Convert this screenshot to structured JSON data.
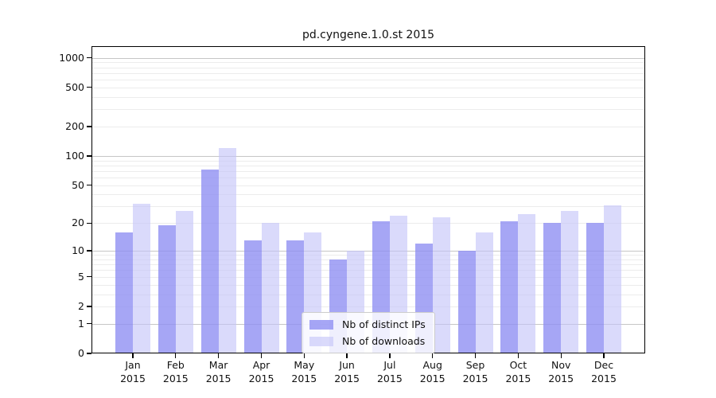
{
  "title": "pd.cyngene.1.0.st 2015",
  "chart_data": {
    "type": "bar",
    "title": "pd.cyngene.1.0.st 2015",
    "categories": [
      "Jan",
      "Feb",
      "Mar",
      "Apr",
      "May",
      "Jun",
      "Jul",
      "Aug",
      "Sep",
      "Oct",
      "Nov",
      "Dec"
    ],
    "x_year": "2015",
    "series": [
      {
        "name": "Nb of distinct IPs",
        "color": "rgba(141,141,242,0.78)",
        "values": [
          16,
          19,
          73,
          13,
          13,
          8,
          21,
          12,
          10,
          21,
          20,
          20
        ]
      },
      {
        "name": "Nb of downloads",
        "color": "rgba(196,196,248,0.62)",
        "values": [
          32,
          27,
          120,
          20,
          16,
          10,
          24,
          23,
          16,
          25,
          27,
          31
        ]
      }
    ],
    "xlabel": "",
    "ylabel": "",
    "yscale": "log10(value+1)",
    "ylim": [
      0,
      1300
    ],
    "yticks": [
      0,
      1,
      2,
      5,
      10,
      20,
      50,
      100,
      200,
      500,
      1000
    ],
    "grid_major_values": [
      1,
      10,
      100,
      1000
    ],
    "grid_minor_values": [
      2,
      3,
      4,
      5,
      6,
      7,
      8,
      9,
      20,
      30,
      40,
      50,
      60,
      70,
      80,
      90,
      200,
      300,
      400,
      500,
      600,
      700,
      800,
      900
    ],
    "grid": "on",
    "legend_position": "lower center"
  },
  "colors": {
    "background": "#ffffff",
    "axis": "#000000",
    "grid_major": "#c6c6c6",
    "grid_minor": "#ececec",
    "bar_distinct_ips": "rgba(141,141,242,0.78)",
    "bar_downloads": "rgba(196,196,248,0.62)"
  }
}
